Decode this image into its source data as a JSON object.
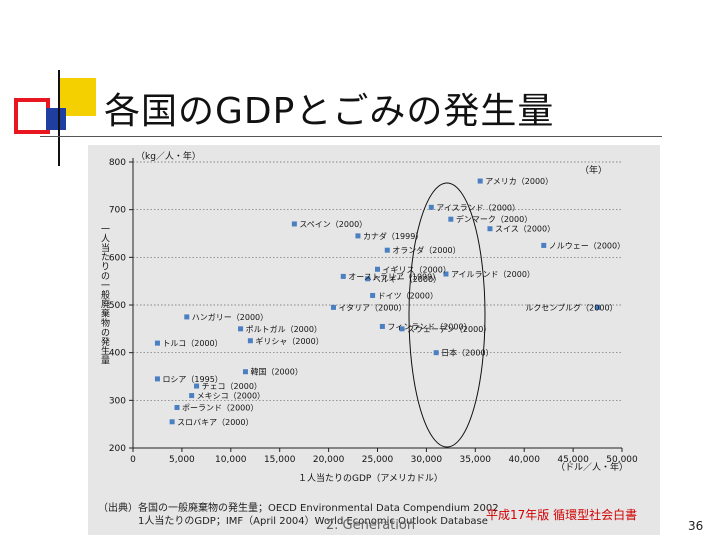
{
  "slide": {
    "title": "各国のGDPとごみの発生量",
    "source_line1": "（出典）各国の一般廃棄物の発生量；OECD Environmental Data Compendium 2002",
    "source_line2": "1人当たりのGDP；IMF（April 2004）World Economic Outlook Database",
    "watermark": "2. Generation",
    "white_paper": "平成17年版 循環型社会白書",
    "page_number": "36",
    "colors": {
      "yellow": "#f5d000",
      "red": "#e8161f",
      "blue": "#1e3f9f",
      "point": "#4a7fc1",
      "plot_bg": "#e6e6e6"
    }
  },
  "chart_data": {
    "type": "scatter",
    "title": "",
    "xlabel": "１人当たりのGDP（アメリカドル）",
    "x_unit": "（ドル／人・年）",
    "ylabel": "一人当たりの一般廃棄物の発生量",
    "y_unit": "（kg／人・年）",
    "corner_label": "（年）",
    "xlim": [
      0,
      50000
    ],
    "ylim": [
      200,
      800
    ],
    "x_ticks": [
      "0",
      "5,000",
      "10,000",
      "15,000",
      "20,000",
      "25,000",
      "30,000",
      "35,000",
      "40,000",
      "45,000",
      "50,000"
    ],
    "y_ticks": [
      "200",
      "300",
      "400",
      "500",
      "600",
      "700",
      "800"
    ],
    "points": [
      {
        "label": "アメリカ（2000）",
        "x": 35500,
        "y": 760
      },
      {
        "label": "アイスランド（2000）",
        "x": 30500,
        "y": 705
      },
      {
        "label": "デンマーク（2000）",
        "x": 32500,
        "y": 680
      },
      {
        "label": "スイス（2000）",
        "x": 36500,
        "y": 660
      },
      {
        "label": "スペイン（2000）",
        "x": 16500,
        "y": 670
      },
      {
        "label": "カナダ（1999）",
        "x": 23000,
        "y": 645
      },
      {
        "label": "ノルウェー（2000）",
        "x": 42000,
        "y": 625
      },
      {
        "label": "オランダ（2000）",
        "x": 26000,
        "y": 615
      },
      {
        "label": "イギリス（2000）",
        "x": 25000,
        "y": 575
      },
      {
        "label": "アイルランド（2000）",
        "x": 32000,
        "y": 565
      },
      {
        "label": "オーストラリア（1999）",
        "x": 21500,
        "y": 560
      },
      {
        "label": "ベルギー（2000）",
        "x": 24000,
        "y": 555
      },
      {
        "label": "ドイツ（2000）",
        "x": 24500,
        "y": 520
      },
      {
        "label": "イタリア（2000）",
        "x": 20500,
        "y": 495
      },
      {
        "label": "ルクセンブルグ（2000）",
        "x": 47500,
        "y": 495
      },
      {
        "label": "ハンガリー（2000）",
        "x": 5500,
        "y": 475
      },
      {
        "label": "フィンランド（2000）",
        "x": 25500,
        "y": 455
      },
      {
        "label": "スウェーデン（2000）",
        "x": 27500,
        "y": 450
      },
      {
        "label": "ポルトガル（2000）",
        "x": 11000,
        "y": 450
      },
      {
        "label": "ギリシャ（2000）",
        "x": 12000,
        "y": 425
      },
      {
        "label": "トルコ（2000）",
        "x": 2500,
        "y": 420
      },
      {
        "label": "日本（2000）",
        "x": 31000,
        "y": 400
      },
      {
        "label": "韓国（2000）",
        "x": 11500,
        "y": 360
      },
      {
        "label": "ロシア（1995）",
        "x": 2500,
        "y": 345
      },
      {
        "label": "チェコ（2000）",
        "x": 6500,
        "y": 330
      },
      {
        "label": "メキシコ（2000）",
        "x": 6000,
        "y": 310
      },
      {
        "label": "ポーランド（2000）",
        "x": 4500,
        "y": 285
      },
      {
        "label": "スロバキア（2000）",
        "x": 4000,
        "y": 255
      }
    ],
    "highlight": "ellipse around the 25,000–35,000 GDP range"
  }
}
